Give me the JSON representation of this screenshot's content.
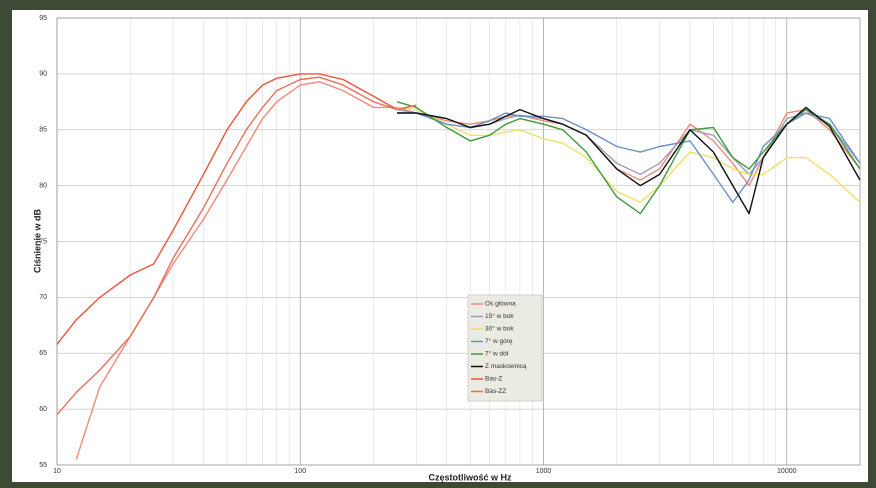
{
  "chart_data": {
    "type": "line",
    "y_label": "Ciśnienie w dB",
    "x_label": "Częstotliwość w Hz",
    "log_x": true,
    "grid": true,
    "minor_grid": true,
    "legend": "center",
    "xlim": [
      10,
      20000
    ],
    "ylim": [
      55,
      95
    ],
    "xticks": [
      10,
      100,
      1000,
      10000
    ],
    "yticks": [
      55,
      60,
      65,
      70,
      75,
      80,
      85,
      90,
      95
    ],
    "x": [
      10,
      12,
      15,
      20,
      25,
      30,
      40,
      50,
      60,
      70,
      80,
      100,
      120,
      150,
      200,
      250,
      300,
      400,
      500,
      600,
      700,
      800,
      1000,
      1200,
      1500,
      2000,
      2500,
      3000,
      4000,
      5000,
      6000,
      7000,
      8000,
      10000,
      12000,
      15000,
      20000
    ],
    "series": [
      {
        "name": "Oś główna",
        "color": "#f08a7a",
        "values": [
          null,
          55.5,
          62,
          66.5,
          70,
          73,
          77,
          80.5,
          83.5,
          86,
          87.5,
          89,
          89.3,
          88.5,
          87,
          87,
          86.5,
          85.8,
          85.5,
          85.8,
          86.2,
          86.3,
          85.8,
          85.5,
          84.5,
          81.5,
          80.5,
          81.5,
          85.5,
          84,
          82,
          80,
          82.5,
          86.5,
          86.8,
          85,
          81.5
        ]
      },
      {
        "name": "15° w bok",
        "color": "#9aa0b4",
        "values": [
          null,
          null,
          null,
          null,
          null,
          null,
          null,
          null,
          null,
          null,
          null,
          null,
          null,
          null,
          null,
          86.8,
          86.5,
          86,
          85.2,
          85.5,
          86,
          86.3,
          86,
          85.5,
          84.5,
          82,
          81,
          82,
          85,
          84.5,
          82.5,
          81,
          82.5,
          86,
          86.5,
          85.5,
          82
        ]
      },
      {
        "name": "30° w bok",
        "color": "#f0e06a",
        "values": [
          null,
          null,
          null,
          null,
          null,
          null,
          null,
          null,
          null,
          null,
          null,
          null,
          null,
          null,
          null,
          87,
          86.8,
          85.5,
          84.5,
          84.5,
          84.8,
          85,
          84.2,
          83.8,
          82.5,
          79.5,
          78.5,
          80,
          83,
          82.5,
          81.5,
          81,
          81,
          82.5,
          82.5,
          81,
          78.5
        ]
      },
      {
        "name": "7° w górę",
        "color": "#6b8fc7",
        "values": [
          null,
          null,
          null,
          null,
          null,
          null,
          null,
          null,
          null,
          null,
          null,
          null,
          null,
          null,
          null,
          86.5,
          86.5,
          85.5,
          85.2,
          85.8,
          86.5,
          86.2,
          86.2,
          86,
          85,
          83.5,
          83,
          83.5,
          84,
          81,
          78.5,
          80.5,
          83.5,
          85.5,
          86.5,
          86,
          82
        ]
      },
      {
        "name": "7° w dół",
        "color": "#3f9a3f",
        "values": [
          null,
          null,
          null,
          null,
          null,
          null,
          null,
          null,
          null,
          null,
          null,
          null,
          null,
          null,
          null,
          87.5,
          87,
          85.2,
          84,
          84.5,
          85.5,
          86,
          85.5,
          85,
          83,
          79,
          77.5,
          80,
          85,
          85.2,
          82.5,
          81.5,
          83,
          85.5,
          86.8,
          85.5,
          81.5
        ]
      },
      {
        "name": "Z maskownicą",
        "color": "#111111",
        "values": [
          null,
          null,
          null,
          null,
          null,
          null,
          null,
          null,
          null,
          null,
          null,
          null,
          null,
          null,
          null,
          86.5,
          86.5,
          86,
          85.2,
          85.5,
          86.2,
          86.8,
          86,
          85.5,
          84.5,
          81.5,
          80,
          81,
          85,
          83,
          80,
          77.5,
          82.5,
          85.5,
          87,
          85.3,
          80.5
        ]
      },
      {
        "name": "Bas-Z",
        "color": "#e8553a",
        "values": [
          65.8,
          68,
          70,
          72,
          73,
          76,
          81,
          85,
          87.5,
          89,
          89.6,
          90,
          90,
          89.5,
          88,
          86.8,
          87.2,
          null,
          null,
          null,
          null,
          null,
          null,
          null,
          null,
          null,
          null,
          null,
          null,
          null,
          null,
          null,
          null,
          null,
          null,
          null,
          null
        ]
      },
      {
        "name": "Bas-ZZ",
        "color": "#e8705a",
        "values": [
          59.5,
          61.5,
          63.5,
          66.5,
          70,
          73.5,
          78,
          82,
          85,
          87,
          88.5,
          89.5,
          89.7,
          89,
          87.5,
          86.8,
          87.2,
          null,
          null,
          null,
          null,
          null,
          null,
          null,
          null,
          null,
          null,
          null,
          null,
          null,
          null,
          null,
          null,
          null,
          null,
          null,
          null
        ]
      }
    ]
  }
}
